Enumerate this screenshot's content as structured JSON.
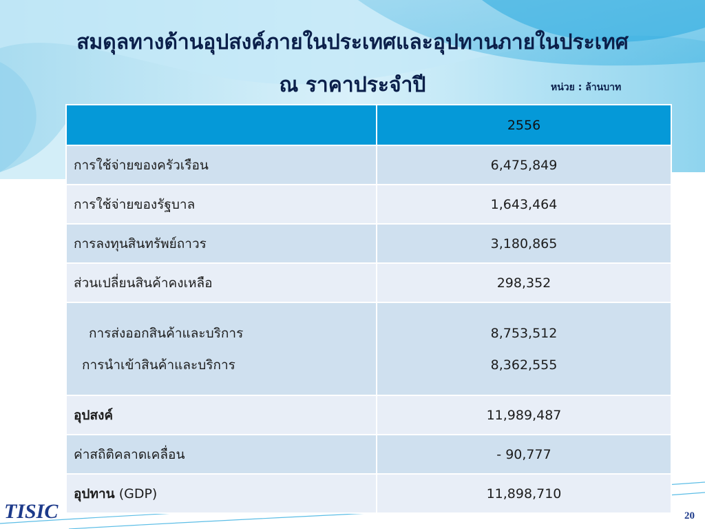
{
  "title": {
    "line1": "สมดุลทางด้านอุปสงค์ภายในประเทศและอุปทานภายในประเทศ",
    "line2": "ณ ราคาประจำปี"
  },
  "unit_label": "หน่วย : ล้านบาท",
  "table": {
    "header": {
      "label": "",
      "year": "2556"
    },
    "rows": [
      {
        "label": "การใช้จ่ายของครัวเรือน",
        "value": "6,475,849"
      },
      {
        "label": "การใช้จ่ายของรัฐบาล",
        "value": "1,643,464"
      },
      {
        "label": "การลงทุนสินทรัพย์ถาวร",
        "value": "3,180,865"
      },
      {
        "label": "ส่วนเปลี่ยนสินค้าคงเหลือ",
        "value": "298,352"
      },
      {
        "label": "การส่งออกสินค้าและบริการ",
        "value": "8,753,512"
      },
      {
        "label": "การนำเข้าสินค้าและบริการ",
        "value": "8,362,555"
      },
      {
        "label": "อุปสงค์",
        "value": "11,989,487"
      },
      {
        "label": "ค่าสถิติคลาดเคลื่อน",
        "value": "- 90,777"
      },
      {
        "label": "อุปทาน",
        "label_suffix": " (GDP)",
        "value": "11,898,710"
      }
    ]
  },
  "footer": {
    "logo": "TISIC",
    "page_number": "20"
  },
  "colors": {
    "header": "#0599d8",
    "row_dark": "#cfe0ef",
    "row_light": "#e8eef7",
    "title": "#0b1f4a"
  }
}
